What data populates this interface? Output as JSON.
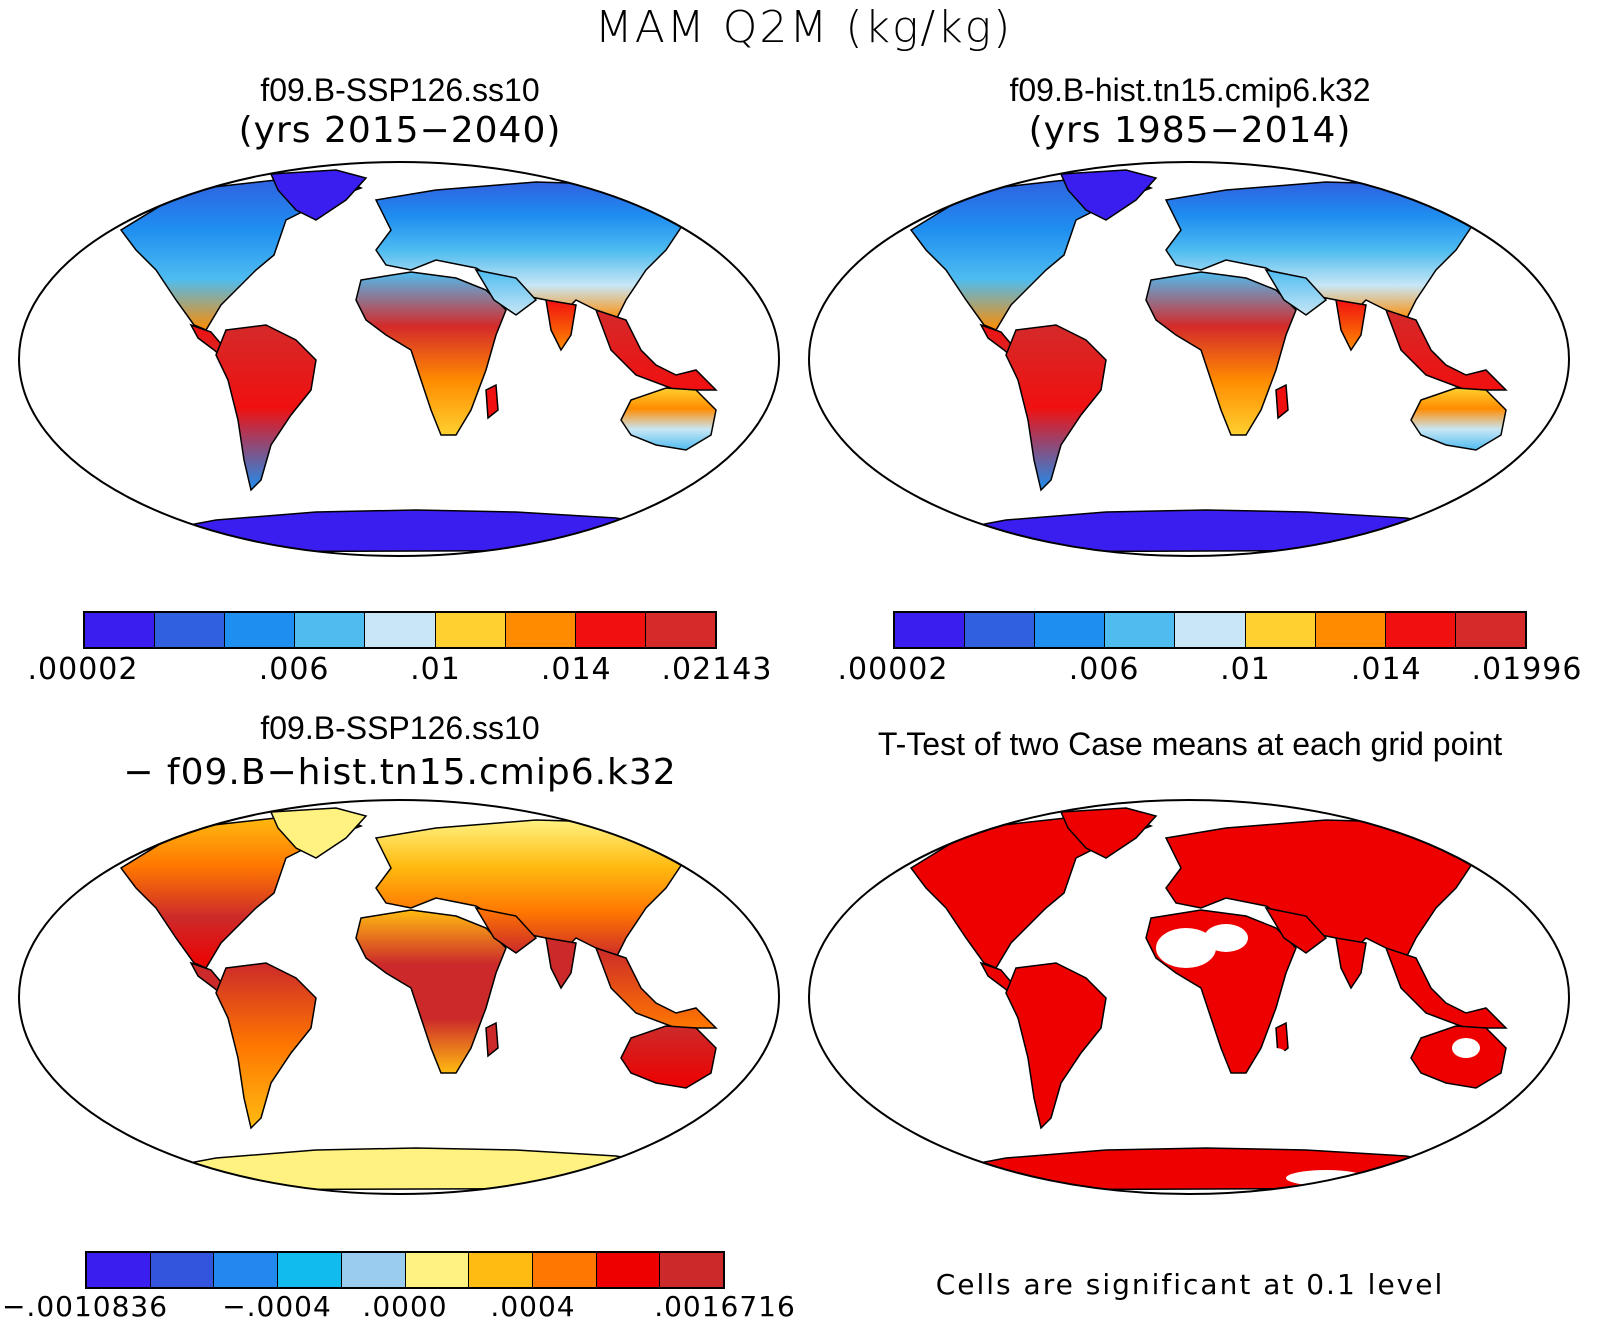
{
  "title": "MAM Q2M (kg/kg)",
  "panels": {
    "p1": {
      "title": "f09.B-SSP126.ss10",
      "subtitle": "(yrs 2015−2040)"
    },
    "p2": {
      "title": "f09.B-hist.tn15.cmip6.k32",
      "subtitle": "(yrs 1985−2014)"
    },
    "p3": {
      "title": "f09.B-SSP126.ss10",
      "subtitle": "− f09.B−hist.tn15.cmip6.k32"
    },
    "p4": {
      "title": "T-Test of two Case means at each grid point",
      "note": "Cells are significant at 0.1 level"
    }
  },
  "colorbars": {
    "cb1": {
      "colors": [
        "#3a1ef0",
        "#3060e0",
        "#1e8ef0",
        "#4fbcf0",
        "#c8e6f5",
        "#ffd030",
        "#ff8c00",
        "#f01010",
        "#d42a2a"
      ],
      "ticks": [
        ".00002",
        ".006",
        ".01",
        ".014",
        ".02143"
      ]
    },
    "cb2": {
      "colors": [
        "#3a1ef0",
        "#3060e0",
        "#1e8ef0",
        "#4fbcf0",
        "#c8e6f5",
        "#ffd030",
        "#ff8c00",
        "#f01010",
        "#d42a2a"
      ],
      "ticks": [
        ".00002",
        ".006",
        ".01",
        ".014",
        ".01996"
      ]
    },
    "cb3": {
      "colors": [
        "#3a1ef0",
        "#3355dd",
        "#2288f0",
        "#11bbee",
        "#99ccee",
        "#fff280",
        "#ffbb11",
        "#ff7700",
        "#ee0000",
        "#cc2a2a"
      ],
      "ticks": [
        "−.0010836",
        "−.0004",
        ".0000",
        ".0004",
        ".0016716"
      ]
    }
  },
  "colors": {
    "ocean": "#ffffff",
    "significant": "#ee0000",
    "antarctica_diff": "#fff280"
  }
}
